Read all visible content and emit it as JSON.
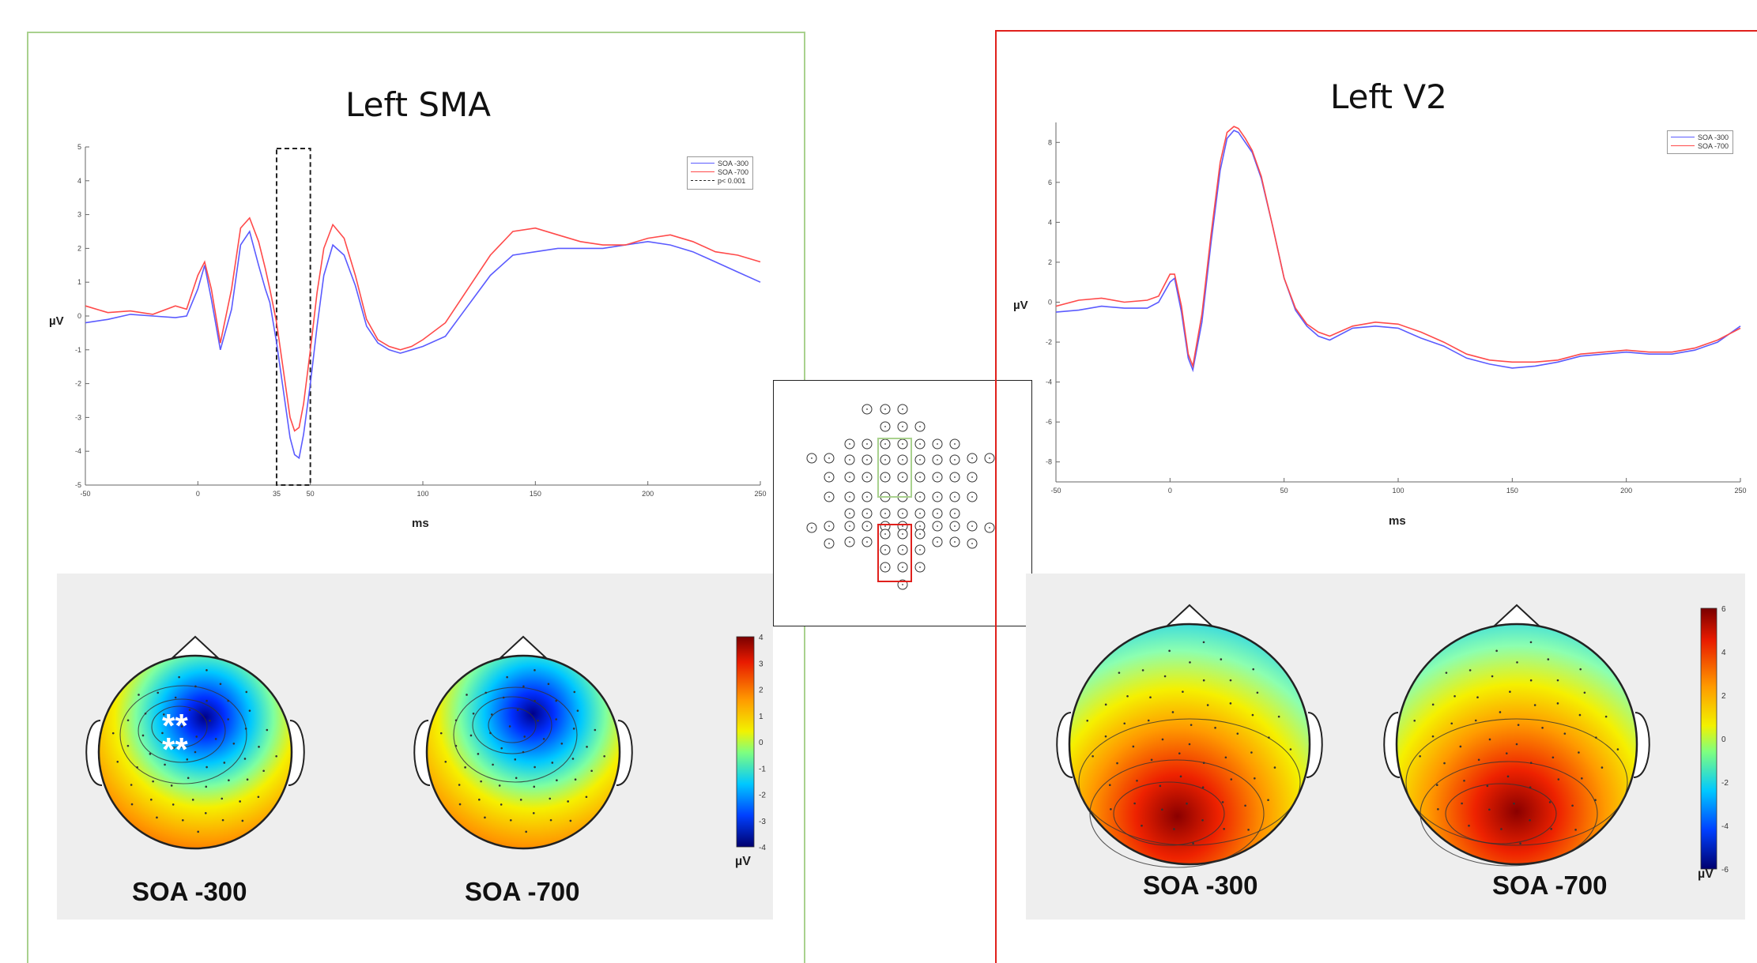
{
  "panels": {
    "left": {
      "title": "Left SMA",
      "border_color": "#a9d18e"
    },
    "right": {
      "title": "Left V2",
      "border_color": "#e0201c"
    }
  },
  "colors": {
    "soa300": "#5b5bff",
    "soa700": "#ff4a4a",
    "marker": "#222222"
  },
  "chart_data": [
    {
      "type": "line",
      "title": "Left SMA",
      "xlabel": "ms",
      "ylabel": "µV",
      "xlim": [
        -50,
        250
      ],
      "ylim": [
        -5,
        5
      ],
      "xticks": [
        -50,
        0,
        35,
        50,
        100,
        150,
        200,
        250
      ],
      "yticks": [
        -5,
        -4,
        -3,
        -2,
        -1,
        0,
        1,
        2,
        3,
        4,
        5
      ],
      "legend": {
        "position": "top-right",
        "entries": [
          "SOA -300",
          "SOA -700",
          "p< 0.001"
        ]
      },
      "highlight_window": [
        35,
        50
      ],
      "series": [
        {
          "name": "SOA -300",
          "color": "#5b5bff",
          "x": [
            -50,
            -40,
            -30,
            -20,
            -10,
            -5,
            0,
            3,
            6,
            10,
            15,
            19,
            23,
            27,
            30,
            32,
            35,
            38,
            41,
            43,
            45,
            47,
            50,
            53,
            56,
            60,
            65,
            70,
            75,
            80,
            85,
            90,
            95,
            100,
            110,
            120,
            130,
            140,
            150,
            160,
            170,
            180,
            190,
            200,
            210,
            220,
            230,
            240,
            250
          ],
          "y": [
            -0.2,
            -0.1,
            0.05,
            0.0,
            -0.05,
            0.0,
            0.8,
            1.5,
            0.5,
            -1.0,
            0.2,
            2.1,
            2.5,
            1.5,
            0.8,
            0.4,
            -0.8,
            -2.2,
            -3.6,
            -4.1,
            -4.2,
            -3.5,
            -2.0,
            -0.3,
            1.2,
            2.1,
            1.8,
            0.9,
            -0.3,
            -0.8,
            -1.0,
            -1.1,
            -1.0,
            -0.9,
            -0.6,
            0.3,
            1.2,
            1.8,
            1.9,
            2.0,
            2.0,
            2.0,
            2.1,
            2.2,
            2.1,
            1.9,
            1.6,
            1.3,
            1.0
          ]
        },
        {
          "name": "SOA -700",
          "color": "#ff4a4a",
          "x": [
            -50,
            -40,
            -30,
            -20,
            -10,
            -5,
            0,
            3,
            6,
            10,
            15,
            19,
            23,
            27,
            30,
            32,
            35,
            38,
            41,
            43,
            45,
            47,
            50,
            53,
            56,
            60,
            65,
            70,
            75,
            80,
            85,
            90,
            95,
            100,
            110,
            120,
            130,
            140,
            150,
            160,
            170,
            180,
            190,
            200,
            210,
            220,
            230,
            240,
            250
          ],
          "y": [
            0.3,
            0.1,
            0.15,
            0.05,
            0.3,
            0.2,
            1.2,
            1.6,
            0.8,
            -0.8,
            0.8,
            2.6,
            2.9,
            2.2,
            1.4,
            0.8,
            -0.2,
            -1.6,
            -3.0,
            -3.4,
            -3.3,
            -2.6,
            -1.0,
            0.7,
            2.0,
            2.7,
            2.3,
            1.2,
            -0.1,
            -0.7,
            -0.9,
            -1.0,
            -0.9,
            -0.7,
            -0.2,
            0.8,
            1.8,
            2.5,
            2.6,
            2.4,
            2.2,
            2.1,
            2.1,
            2.3,
            2.4,
            2.2,
            1.9,
            1.8,
            1.6
          ]
        }
      ]
    },
    {
      "type": "line",
      "title": "Left V2",
      "xlabel": "ms",
      "ylabel": "µV",
      "xlim": [
        -50,
        250
      ],
      "ylim": [
        -9,
        9
      ],
      "xticks": [
        -50,
        0,
        50,
        100,
        150,
        200,
        250
      ],
      "yticks": [
        -8,
        -6,
        -4,
        -2,
        0,
        2,
        4,
        6,
        8
      ],
      "legend": {
        "position": "top-right",
        "entries": [
          "SOA -300",
          "SOA -700"
        ]
      },
      "series": [
        {
          "name": "SOA -300",
          "color": "#5b5bff",
          "x": [
            -50,
            -40,
            -30,
            -20,
            -10,
            -5,
            0,
            2,
            5,
            8,
            10,
            14,
            18,
            22,
            25,
            28,
            30,
            33,
            36,
            40,
            45,
            50,
            55,
            60,
            65,
            70,
            80,
            90,
            100,
            110,
            120,
            130,
            140,
            150,
            160,
            170,
            180,
            190,
            200,
            210,
            220,
            230,
            240,
            250
          ],
          "y": [
            -0.5,
            -0.4,
            -0.2,
            -0.3,
            -0.3,
            0.0,
            1.0,
            1.2,
            -0.5,
            -2.8,
            -3.4,
            -1.0,
            3.0,
            6.6,
            8.2,
            8.6,
            8.5,
            8.0,
            7.5,
            6.2,
            3.8,
            1.2,
            -0.4,
            -1.2,
            -1.7,
            -1.9,
            -1.3,
            -1.2,
            -1.3,
            -1.8,
            -2.2,
            -2.8,
            -3.1,
            -3.3,
            -3.2,
            -3.0,
            -2.7,
            -2.6,
            -2.5,
            -2.6,
            -2.6,
            -2.4,
            -2.0,
            -1.2
          ]
        },
        {
          "name": "SOA -700",
          "color": "#ff4a4a",
          "x": [
            -50,
            -40,
            -30,
            -20,
            -10,
            -5,
            0,
            2,
            5,
            8,
            10,
            14,
            18,
            22,
            25,
            28,
            30,
            33,
            36,
            40,
            45,
            50,
            55,
            60,
            65,
            70,
            80,
            90,
            100,
            110,
            120,
            130,
            140,
            150,
            160,
            170,
            180,
            190,
            200,
            210,
            220,
            230,
            240,
            250
          ],
          "y": [
            -0.2,
            0.1,
            0.2,
            0.0,
            0.1,
            0.3,
            1.4,
            1.4,
            -0.2,
            -2.6,
            -3.2,
            -0.6,
            3.4,
            7.0,
            8.5,
            8.8,
            8.7,
            8.2,
            7.6,
            6.3,
            3.8,
            1.2,
            -0.3,
            -1.1,
            -1.5,
            -1.7,
            -1.2,
            -1.0,
            -1.1,
            -1.5,
            -2.0,
            -2.6,
            -2.9,
            -3.0,
            -3.0,
            -2.9,
            -2.6,
            -2.5,
            -2.4,
            -2.5,
            -2.5,
            -2.3,
            -1.9,
            -1.3
          ]
        }
      ]
    }
  ],
  "topomaps_left": {
    "labels": [
      "SOA -300",
      "SOA -700"
    ],
    "annotation": "**",
    "colorbar_ticks": [
      "4",
      "3",
      "2",
      "1",
      "0",
      "-1",
      "-2",
      "-3",
      "-4"
    ],
    "unit": "µV"
  },
  "topomaps_right": {
    "labels": [
      "SOA -300",
      "SOA -700"
    ],
    "colorbar_ticks": [
      "6",
      "4",
      "2",
      "0",
      "-2",
      "-4",
      "-6"
    ],
    "unit": "µV"
  },
  "montage": {
    "description_icon": "electrode-montage-icon"
  }
}
